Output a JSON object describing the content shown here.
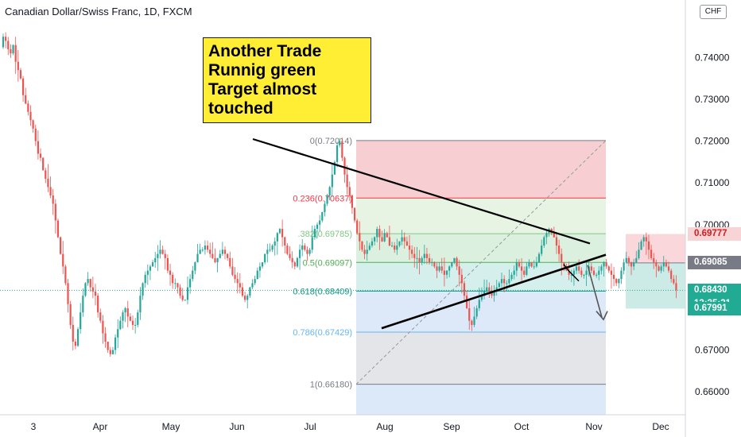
{
  "header": {
    "symbol_title": "Canadian Dollar/Swiss Franc, 1D, FXCM",
    "currency": "CHF"
  },
  "annotation": {
    "lines": [
      "Another Trade",
      "Runnig green",
      "Target almost",
      "touched"
    ]
  },
  "price_labels": [
    {
      "id": "target-high",
      "text": "0.69777",
      "bg": "#f7d5d6",
      "fg": "#e0161a",
      "value": 0.69777
    },
    {
      "id": "entry",
      "text": "0.69085",
      "bg": "#787b86",
      "fg": "#ffffff",
      "value": 0.69085
    },
    {
      "id": "last",
      "text": "0.68430",
      "bg": "#22ab94",
      "fg": "#ffffff",
      "value": 0.6843
    },
    {
      "id": "countdown",
      "text": "13:35:21",
      "bg": "#22ab94",
      "fg": "#ffffff",
      "value": null
    },
    {
      "id": "target",
      "text": "0.67991",
      "bg": "#22ab94",
      "fg": "#ffffff",
      "value": 0.67991
    }
  ],
  "chart_data": {
    "type": "candlestick",
    "ylim": [
      0.6545,
      0.7515
    ],
    "x_tick_labels": [
      "3",
      "Apr",
      "May",
      "Jun",
      "Jul",
      "Aug",
      "Sep",
      "Oct",
      "Nov",
      "Dec"
    ],
    "y_tick_labels": [
      {
        "label": "0.74000",
        "value": 0.74
      },
      {
        "label": "0.73000",
        "value": 0.73
      },
      {
        "label": "0.72000",
        "value": 0.72
      },
      {
        "label": "0.71000",
        "value": 0.71
      },
      {
        "label": "0.70000",
        "value": 0.7
      },
      {
        "label": "0.67000",
        "value": 0.67
      },
      {
        "label": "0.66000",
        "value": 0.66
      }
    ],
    "fib_levels": [
      {
        "ratio": 0,
        "value": 0.72014,
        "label": "0(0.72014)",
        "color": "#787b86"
      },
      {
        "ratio": 0.236,
        "value": 0.70637,
        "label": "0.236(0.70637)",
        "color": "#f23645"
      },
      {
        "ratio": 0.382,
        "value": 0.69785,
        "label": ".382(0.69785)",
        "color": "#81c784"
      },
      {
        "ratio": 0.5,
        "value": 0.69097,
        "label": "0.5(0.69097)",
        "color": "#4caf50"
      },
      {
        "ratio": 0.618,
        "value": 0.68409,
        "label": "0.618(0.68409)",
        "color": "#089981"
      },
      {
        "ratio": 0.786,
        "value": 0.67429,
        "label": "0.786(0.67429)",
        "color": "#64b5f6"
      },
      {
        "ratio": 1,
        "value": 0.6618,
        "label": "1(0.66180)",
        "color": "#787b86"
      }
    ],
    "last_price": 0.6843,
    "trendlines": [
      {
        "name": "descending-resistance",
        "from": 0.7205,
        "to": 0.6955
      },
      {
        "name": "ascending-support",
        "from": 0.6752,
        "to": 0.6928
      }
    ],
    "position": {
      "entry": 0.69085,
      "stop": 0.69777,
      "target": 0.67991
    },
    "path_points": [
      0.7425,
      0.745,
      0.744,
      0.742,
      0.741,
      0.743,
      0.739,
      0.737,
      0.735,
      0.731,
      0.729,
      0.727,
      0.725,
      0.723,
      0.72,
      0.717,
      0.716,
      0.713,
      0.711,
      0.709,
      0.707,
      0.705,
      0.701,
      0.697,
      0.693,
      0.69,
      0.686,
      0.681,
      0.676,
      0.672,
      0.671,
      0.675,
      0.679,
      0.683,
      0.686,
      0.687,
      0.685,
      0.684,
      0.683,
      0.679,
      0.677,
      0.674,
      0.672,
      0.67,
      0.669,
      0.67,
      0.673,
      0.675,
      0.677,
      0.679,
      0.68,
      0.678,
      0.677,
      0.676,
      0.676,
      0.679,
      0.683,
      0.686,
      0.688,
      0.689,
      0.69,
      0.691,
      0.692,
      0.693,
      0.694,
      0.693,
      0.692,
      0.689,
      0.688,
      0.686,
      0.686,
      0.685,
      0.683,
      0.682,
      0.682,
      0.685,
      0.687,
      0.689,
      0.691,
      0.693,
      0.694,
      0.694,
      0.695,
      0.694,
      0.693,
      0.692,
      0.691,
      0.692,
      0.693,
      0.694,
      0.693,
      0.692,
      0.69,
      0.688,
      0.687,
      0.686,
      0.685,
      0.683,
      0.682,
      0.683,
      0.685,
      0.686,
      0.687,
      0.689,
      0.69,
      0.691,
      0.693,
      0.694,
      0.694,
      0.695,
      0.696,
      0.698,
      0.699,
      0.697,
      0.695,
      0.693,
      0.692,
      0.691,
      0.69,
      0.692,
      0.694,
      0.695,
      0.694,
      0.693,
      0.694,
      0.697,
      0.699,
      0.7,
      0.701,
      0.703,
      0.705,
      0.707,
      0.709,
      0.712,
      0.715,
      0.719,
      0.72,
      0.716,
      0.712,
      0.709,
      0.707,
      0.704,
      0.701,
      0.698,
      0.696,
      0.694,
      0.693,
      0.694,
      0.695,
      0.696,
      0.697,
      0.699,
      0.697,
      0.696,
      0.698,
      0.697,
      0.695,
      0.695,
      0.694,
      0.695,
      0.696,
      0.697,
      0.696,
      0.695,
      0.694,
      0.693,
      0.692,
      0.692,
      0.691,
      0.692,
      0.693,
      0.692,
      0.691,
      0.691,
      0.69,
      0.689,
      0.69,
      0.689,
      0.688,
      0.689,
      0.69,
      0.691,
      0.692,
      0.69,
      0.688,
      0.686,
      0.683,
      0.68,
      0.677,
      0.676,
      0.678,
      0.68,
      0.682,
      0.683,
      0.684,
      0.685,
      0.684,
      0.683,
      0.684,
      0.685,
      0.686,
      0.687,
      0.686,
      0.686,
      0.687,
      0.688,
      0.689,
      0.691,
      0.69,
      0.689,
      0.688,
      0.69,
      0.691,
      0.69,
      0.69,
      0.691,
      0.693,
      0.695,
      0.697,
      0.698,
      0.699,
      0.698,
      0.697,
      0.695,
      0.693,
      0.691,
      0.69,
      0.689,
      0.688,
      0.688,
      0.689,
      0.69,
      0.689,
      0.688,
      0.688,
      0.689,
      0.69,
      0.689,
      0.688,
      0.688,
      0.689,
      0.69,
      0.691,
      0.69,
      0.689,
      0.688,
      0.687,
      0.686,
      0.687,
      0.689,
      0.691,
      0.692,
      0.691,
      0.69,
      0.691,
      0.692,
      0.694,
      0.696,
      0.697,
      0.696,
      0.694,
      0.692,
      0.691,
      0.69,
      0.689,
      0.69,
      0.691,
      0.69,
      0.689,
      0.687,
      0.686,
      0.6843
    ]
  }
}
